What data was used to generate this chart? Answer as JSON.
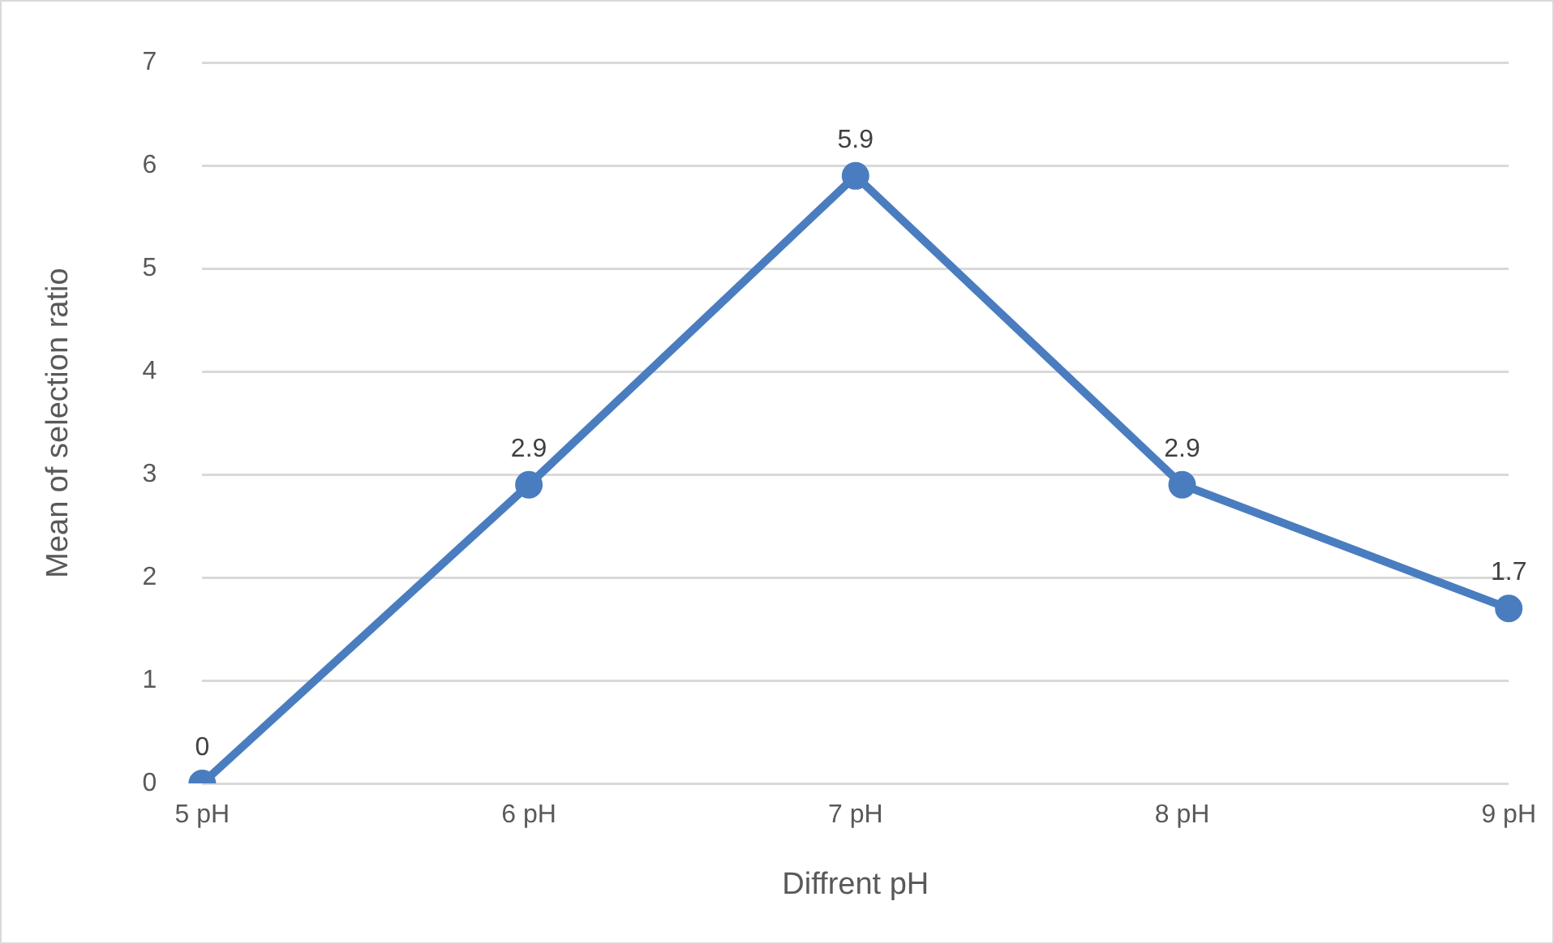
{
  "chart_data": {
    "type": "line",
    "xlabel": "Diffrent pH",
    "ylabel": "Mean of selection ratio",
    "categories": [
      "5 pH",
      "6 pH",
      "7 pH",
      "8 pH",
      "9 pH"
    ],
    "series": [
      {
        "color": "#4a7dbf",
        "values": [
          0,
          2.9,
          5.9,
          2.9,
          1.7
        ]
      }
    ],
    "ylim": [
      0,
      7
    ],
    "yticks": [
      0,
      1,
      2,
      3,
      4,
      5,
      6,
      7
    ],
    "grid": "y",
    "data_labels": true,
    "marker": "circle",
    "line_style": "solid"
  }
}
